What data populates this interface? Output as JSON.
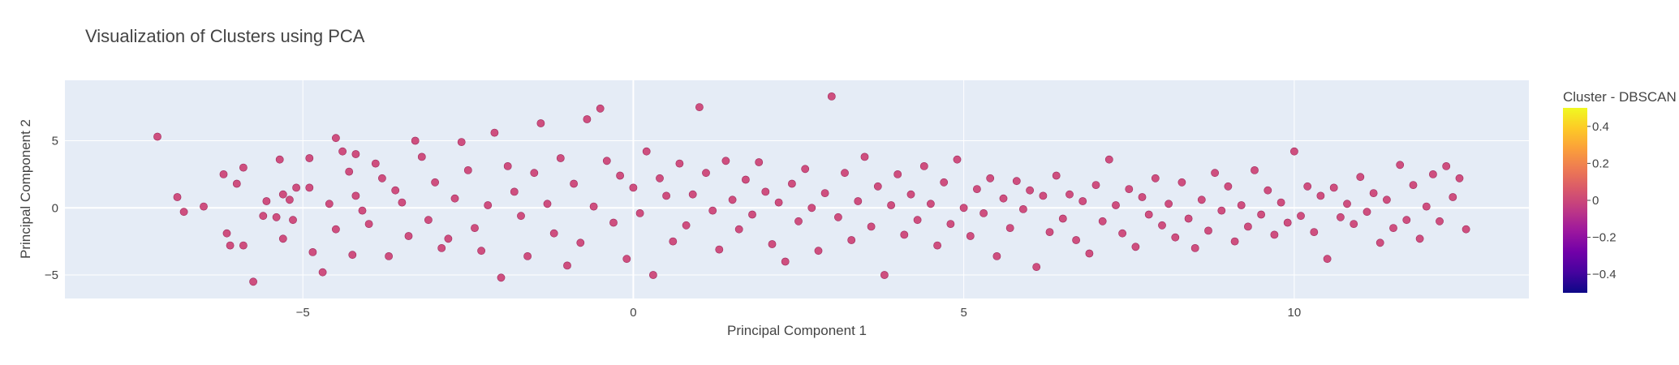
{
  "chart_data": {
    "type": "scatter",
    "title": "Visualization of Clusters using PCA",
    "xlabel": "Principal Component 1",
    "ylabel": "Principal Component 2",
    "xlim": [
      -8.6,
      13.55
    ],
    "ylim": [
      -6.75,
      9.5
    ],
    "xticks": [
      {
        "value": -5,
        "label": "−5"
      },
      {
        "value": 0,
        "label": "0"
      },
      {
        "value": 5,
        "label": "5"
      },
      {
        "value": 10,
        "label": "10"
      }
    ],
    "yticks": [
      {
        "value": -5,
        "label": "−5"
      },
      {
        "value": 0,
        "label": "0"
      },
      {
        "value": 5,
        "label": "5"
      }
    ],
    "grid": true,
    "marker_color": "#cc4778",
    "plot_background": "#e5ecf6",
    "colorbar": {
      "title": "Cluster - DBSCAN",
      "range": [
        -0.5,
        0.5
      ],
      "ticks": [
        {
          "value": 0.4,
          "label": "0.4"
        },
        {
          "value": 0.2,
          "label": "0.2"
        },
        {
          "value": 0,
          "label": "0"
        },
        {
          "value": -0.2,
          "label": "−0.2"
        },
        {
          "value": -0.4,
          "label": "−0.4"
        }
      ],
      "colorscale": [
        "#0d0887",
        "#46039f",
        "#7201a8",
        "#9c179e",
        "#bd3786",
        "#d8576b",
        "#ed7953",
        "#fb9f3a",
        "#fdca26",
        "#f0f921"
      ]
    },
    "series": [
      {
        "cluster": 0,
        "points": [
          [
            -7.2,
            5.3
          ],
          [
            -6.9,
            0.8
          ],
          [
            -6.8,
            -0.3
          ],
          [
            -6.5,
            0.1
          ],
          [
            -6.2,
            2.5
          ],
          [
            -6.15,
            -1.9
          ],
          [
            -6.1,
            -2.8
          ],
          [
            -6.0,
            1.8
          ],
          [
            -5.9,
            3.0
          ],
          [
            -5.9,
            -2.8
          ],
          [
            -5.75,
            -5.5
          ],
          [
            -5.6,
            -0.6
          ],
          [
            -5.55,
            0.5
          ],
          [
            -5.4,
            -0.7
          ],
          [
            -5.35,
            3.6
          ],
          [
            -5.3,
            1.0
          ],
          [
            -5.3,
            -2.3
          ],
          [
            -5.2,
            0.6
          ],
          [
            -5.15,
            -0.9
          ],
          [
            -5.1,
            1.5
          ],
          [
            -4.9,
            1.5
          ],
          [
            -4.9,
            3.7
          ],
          [
            -4.85,
            -3.3
          ],
          [
            -4.7,
            -4.8
          ],
          [
            -4.6,
            0.3
          ],
          [
            -4.5,
            5.2
          ],
          [
            -4.5,
            -1.6
          ],
          [
            -4.4,
            4.2
          ],
          [
            -4.3,
            2.7
          ],
          [
            -4.25,
            -3.5
          ],
          [
            -4.2,
            4.0
          ],
          [
            -4.2,
            0.9
          ],
          [
            -4.1,
            -0.2
          ],
          [
            -4.0,
            -1.2
          ],
          [
            -3.9,
            3.3
          ],
          [
            -3.8,
            2.2
          ],
          [
            -3.7,
            -3.6
          ],
          [
            -3.6,
            1.3
          ],
          [
            -3.5,
            0.4
          ],
          [
            -3.4,
            -2.1
          ],
          [
            -3.3,
            5.0
          ],
          [
            -3.2,
            3.8
          ],
          [
            -3.1,
            -0.9
          ],
          [
            -3.0,
            1.9
          ],
          [
            -2.9,
            -3.0
          ],
          [
            -2.8,
            -2.3
          ],
          [
            -2.7,
            0.7
          ],
          [
            -2.6,
            4.9
          ],
          [
            -2.5,
            2.8
          ],
          [
            -2.4,
            -1.5
          ],
          [
            -2.3,
            -3.2
          ],
          [
            -2.2,
            0.2
          ],
          [
            -2.1,
            5.6
          ],
          [
            -2.0,
            -5.2
          ],
          [
            -1.9,
            3.1
          ],
          [
            -1.8,
            1.2
          ],
          [
            -1.7,
            -0.6
          ],
          [
            -1.6,
            -3.6
          ],
          [
            -1.5,
            2.6
          ],
          [
            -1.4,
            6.3
          ],
          [
            -1.3,
            0.3
          ],
          [
            -1.2,
            -1.9
          ],
          [
            -1.1,
            3.7
          ],
          [
            -1.0,
            -4.3
          ],
          [
            -0.9,
            1.8
          ],
          [
            -0.8,
            -2.6
          ],
          [
            -0.7,
            6.6
          ],
          [
            -0.6,
            0.1
          ],
          [
            -0.5,
            7.4
          ],
          [
            -0.4,
            3.5
          ],
          [
            -0.3,
            -1.1
          ],
          [
            -0.2,
            2.4
          ],
          [
            -0.1,
            -3.8
          ],
          [
            0.0,
            1.5
          ],
          [
            0.1,
            -0.4
          ],
          [
            0.2,
            4.2
          ],
          [
            0.3,
            -5.0
          ],
          [
            0.4,
            2.2
          ],
          [
            0.5,
            0.9
          ],
          [
            0.6,
            -2.5
          ],
          [
            0.7,
            3.3
          ],
          [
            0.8,
            -1.3
          ],
          [
            0.9,
            1.0
          ],
          [
            1.0,
            7.5
          ],
          [
            1.1,
            2.6
          ],
          [
            1.2,
            -0.2
          ],
          [
            1.3,
            -3.1
          ],
          [
            1.4,
            3.5
          ],
          [
            1.5,
            0.6
          ],
          [
            1.6,
            -1.6
          ],
          [
            1.7,
            2.1
          ],
          [
            1.8,
            -0.5
          ],
          [
            1.9,
            3.4
          ],
          [
            2.0,
            1.2
          ],
          [
            2.1,
            -2.7
          ],
          [
            2.2,
            0.4
          ],
          [
            2.3,
            -4.0
          ],
          [
            2.4,
            1.8
          ],
          [
            2.5,
            -1.0
          ],
          [
            2.6,
            2.9
          ],
          [
            2.7,
            0.0
          ],
          [
            2.8,
            -3.2
          ],
          [
            2.9,
            1.1
          ],
          [
            3.0,
            8.3
          ],
          [
            3.1,
            -0.7
          ],
          [
            3.2,
            2.6
          ],
          [
            3.3,
            -2.4
          ],
          [
            3.4,
            0.5
          ],
          [
            3.5,
            3.8
          ],
          [
            3.6,
            -1.4
          ],
          [
            3.7,
            1.6
          ],
          [
            3.8,
            -5.0
          ],
          [
            3.9,
            0.2
          ],
          [
            4.0,
            2.5
          ],
          [
            4.1,
            -2.0
          ],
          [
            4.2,
            1.0
          ],
          [
            4.3,
            -0.9
          ],
          [
            4.4,
            3.1
          ],
          [
            4.5,
            0.3
          ],
          [
            4.6,
            -2.8
          ],
          [
            4.7,
            1.9
          ],
          [
            4.8,
            -1.2
          ],
          [
            4.9,
            3.6
          ],
          [
            5.0,
            0.0
          ],
          [
            5.1,
            -2.1
          ],
          [
            5.2,
            1.4
          ],
          [
            5.3,
            -0.4
          ],
          [
            5.4,
            2.2
          ],
          [
            5.5,
            -3.6
          ],
          [
            5.6,
            0.7
          ],
          [
            5.7,
            -1.5
          ],
          [
            5.8,
            2.0
          ],
          [
            5.9,
            -0.1
          ],
          [
            6.0,
            1.3
          ],
          [
            6.1,
            -4.4
          ],
          [
            6.2,
            0.9
          ],
          [
            6.3,
            -1.8
          ],
          [
            6.4,
            2.4
          ],
          [
            6.5,
            -0.8
          ],
          [
            6.6,
            1.0
          ],
          [
            6.7,
            -2.4
          ],
          [
            6.8,
            0.5
          ],
          [
            6.9,
            -3.4
          ],
          [
            7.0,
            1.7
          ],
          [
            7.1,
            -1.0
          ],
          [
            7.2,
            3.6
          ],
          [
            7.3,
            0.2
          ],
          [
            7.4,
            -1.9
          ],
          [
            7.5,
            1.4
          ],
          [
            7.6,
            -2.9
          ],
          [
            7.7,
            0.8
          ],
          [
            7.8,
            -0.5
          ],
          [
            7.9,
            2.2
          ],
          [
            8.0,
            -1.3
          ],
          [
            8.1,
            0.3
          ],
          [
            8.2,
            -2.2
          ],
          [
            8.3,
            1.9
          ],
          [
            8.4,
            -0.8
          ],
          [
            8.5,
            -3.0
          ],
          [
            8.6,
            0.6
          ],
          [
            8.7,
            -1.7
          ],
          [
            8.8,
            2.6
          ],
          [
            8.9,
            -0.2
          ],
          [
            9.0,
            1.6
          ],
          [
            9.1,
            -2.5
          ],
          [
            9.2,
            0.2
          ],
          [
            9.3,
            -1.4
          ],
          [
            9.4,
            2.8
          ],
          [
            9.5,
            -0.5
          ],
          [
            9.6,
            1.3
          ],
          [
            9.7,
            -2.0
          ],
          [
            9.8,
            0.4
          ],
          [
            9.9,
            -1.1
          ],
          [
            10.0,
            4.2
          ],
          [
            10.1,
            -0.6
          ],
          [
            10.2,
            1.6
          ],
          [
            10.3,
            -1.8
          ],
          [
            10.4,
            0.9
          ],
          [
            10.5,
            -3.8
          ],
          [
            10.6,
            1.5
          ],
          [
            10.7,
            -0.7
          ],
          [
            10.8,
            0.3
          ],
          [
            10.9,
            -1.2
          ],
          [
            11.0,
            2.3
          ],
          [
            11.1,
            -0.3
          ],
          [
            11.2,
            1.1
          ],
          [
            11.3,
            -2.6
          ],
          [
            11.4,
            0.6
          ],
          [
            11.5,
            -1.5
          ],
          [
            11.6,
            3.2
          ],
          [
            11.7,
            -0.9
          ],
          [
            11.8,
            1.7
          ],
          [
            11.9,
            -2.3
          ],
          [
            12.0,
            0.1
          ],
          [
            12.1,
            2.5
          ],
          [
            12.2,
            -1.0
          ],
          [
            12.3,
            3.1
          ],
          [
            12.4,
            0.8
          ],
          [
            12.5,
            2.2
          ],
          [
            12.6,
            -1.6
          ]
        ]
      }
    ]
  }
}
